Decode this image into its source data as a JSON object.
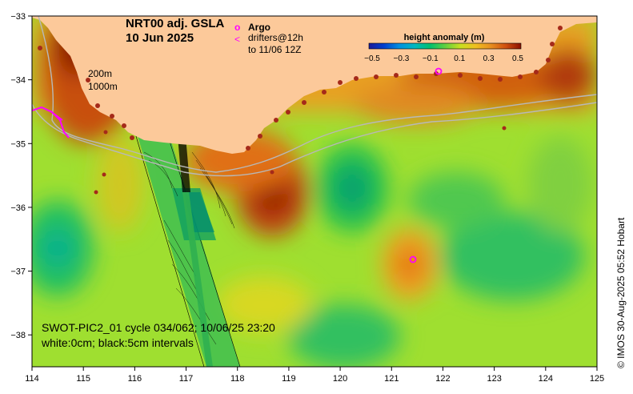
{
  "title": {
    "line1": "NRT00 adj. GSLA",
    "line2": "10 Jun 2025"
  },
  "legend": {
    "argo_symbol": "o",
    "argo_label": "Argo",
    "drifter_symbol": "<",
    "drifter_label_1": "drifters@12h",
    "drifter_label_2": "to 11/06 12Z",
    "argo_color": "#ff00ff",
    "drifter_color": "#ff00ff"
  },
  "colorbar": {
    "title": "height anomaly (m)",
    "tick_labels": [
      "−0.5",
      "−0.3",
      "−0.1",
      "0.1",
      "0.3",
      "0.5"
    ],
    "stops": [
      "#2020a0",
      "#0050d0",
      "#00a0e0",
      "#00c0a0",
      "#20c050",
      "#90dc30",
      "#e0e020",
      "#f0b020",
      "#e07010",
      "#c04010",
      "#8b1000"
    ]
  },
  "isobaths": {
    "label_1": "200m",
    "label_2": "1000m"
  },
  "swot_note": {
    "line1": "SWOT-PIC2_01 cycle 034/062; 10/06/25 23:20",
    "line2": "white:0cm; black:5cm intervals"
  },
  "credit": "© IMOS 30-Aug-2025 05:52 Hobart",
  "axes": {
    "x_ticks": [
      "114",
      "115",
      "116",
      "117",
      "118",
      "119",
      "120",
      "121",
      "122",
      "123",
      "124",
      "125"
    ],
    "y_ticks": [
      "−33",
      "−34",
      "−35",
      "−36",
      "−37",
      "−38"
    ],
    "x_range": [
      114,
      125
    ],
    "y_range": [
      -38.5,
      -33
    ]
  },
  "colors": {
    "land": "#fcc99a",
    "coast_dots": "#a52a1a",
    "isobath": "#b8b8b8"
  }
}
